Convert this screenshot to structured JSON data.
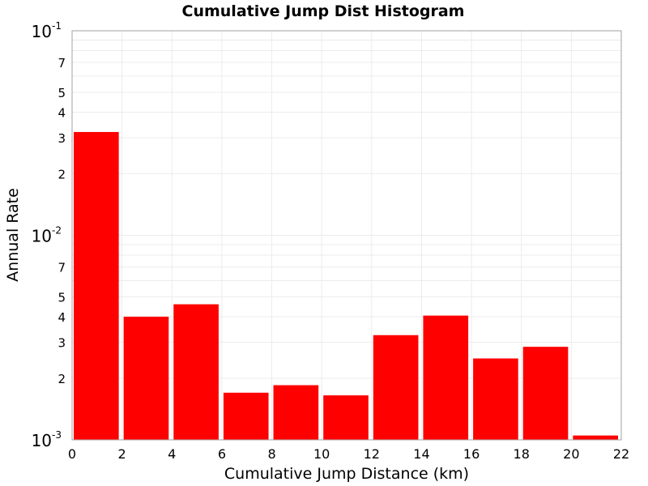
{
  "chart_data": {
    "type": "bar",
    "title": "Cumulative Jump Dist Histogram",
    "xlabel": "Cumulative Jump Distance (km)",
    "ylabel": "Annual Rate",
    "xlim": [
      0,
      22
    ],
    "ylim": [
      0.001,
      0.1
    ],
    "yscale": "log",
    "grid": true,
    "bar_color": "#ff0000",
    "x_ticks": [
      "0",
      "2",
      "4",
      "6",
      "8",
      "10",
      "12",
      "14",
      "16",
      "18",
      "20",
      "22"
    ],
    "y_major_ticks": [
      {
        "value": 0.1,
        "base": "10",
        "exp": "-1"
      },
      {
        "value": 0.01,
        "base": "10",
        "exp": "-2"
      },
      {
        "value": 0.001,
        "base": "10",
        "exp": "-3"
      }
    ],
    "y_minor_ticks": [
      {
        "value": 0.07,
        "label": "7"
      },
      {
        "value": 0.05,
        "label": "5"
      },
      {
        "value": 0.04,
        "label": "4"
      },
      {
        "value": 0.03,
        "label": "3"
      },
      {
        "value": 0.02,
        "label": "2"
      },
      {
        "value": 0.007,
        "label": "7"
      },
      {
        "value": 0.005,
        "label": "5"
      },
      {
        "value": 0.004,
        "label": "4"
      },
      {
        "value": 0.003,
        "label": "3"
      },
      {
        "value": 0.002,
        "label": "2"
      }
    ],
    "bars": [
      {
        "x0": 0,
        "x1": 2,
        "value": 0.032
      },
      {
        "x0": 2,
        "x1": 4,
        "value": 0.004
      },
      {
        "x0": 4,
        "x1": 6,
        "value": 0.0046
      },
      {
        "x0": 6,
        "x1": 8,
        "value": 0.0017
      },
      {
        "x0": 8,
        "x1": 10,
        "value": 0.00185
      },
      {
        "x0": 10,
        "x1": 12,
        "value": 0.00165
      },
      {
        "x0": 12,
        "x1": 14,
        "value": 0.00325
      },
      {
        "x0": 14,
        "x1": 16,
        "value": 0.00405
      },
      {
        "x0": 16,
        "x1": 18,
        "value": 0.0025
      },
      {
        "x0": 18,
        "x1": 20,
        "value": 0.00285
      },
      {
        "x0": 20,
        "x1": 22,
        "value": 0.00105
      }
    ]
  }
}
